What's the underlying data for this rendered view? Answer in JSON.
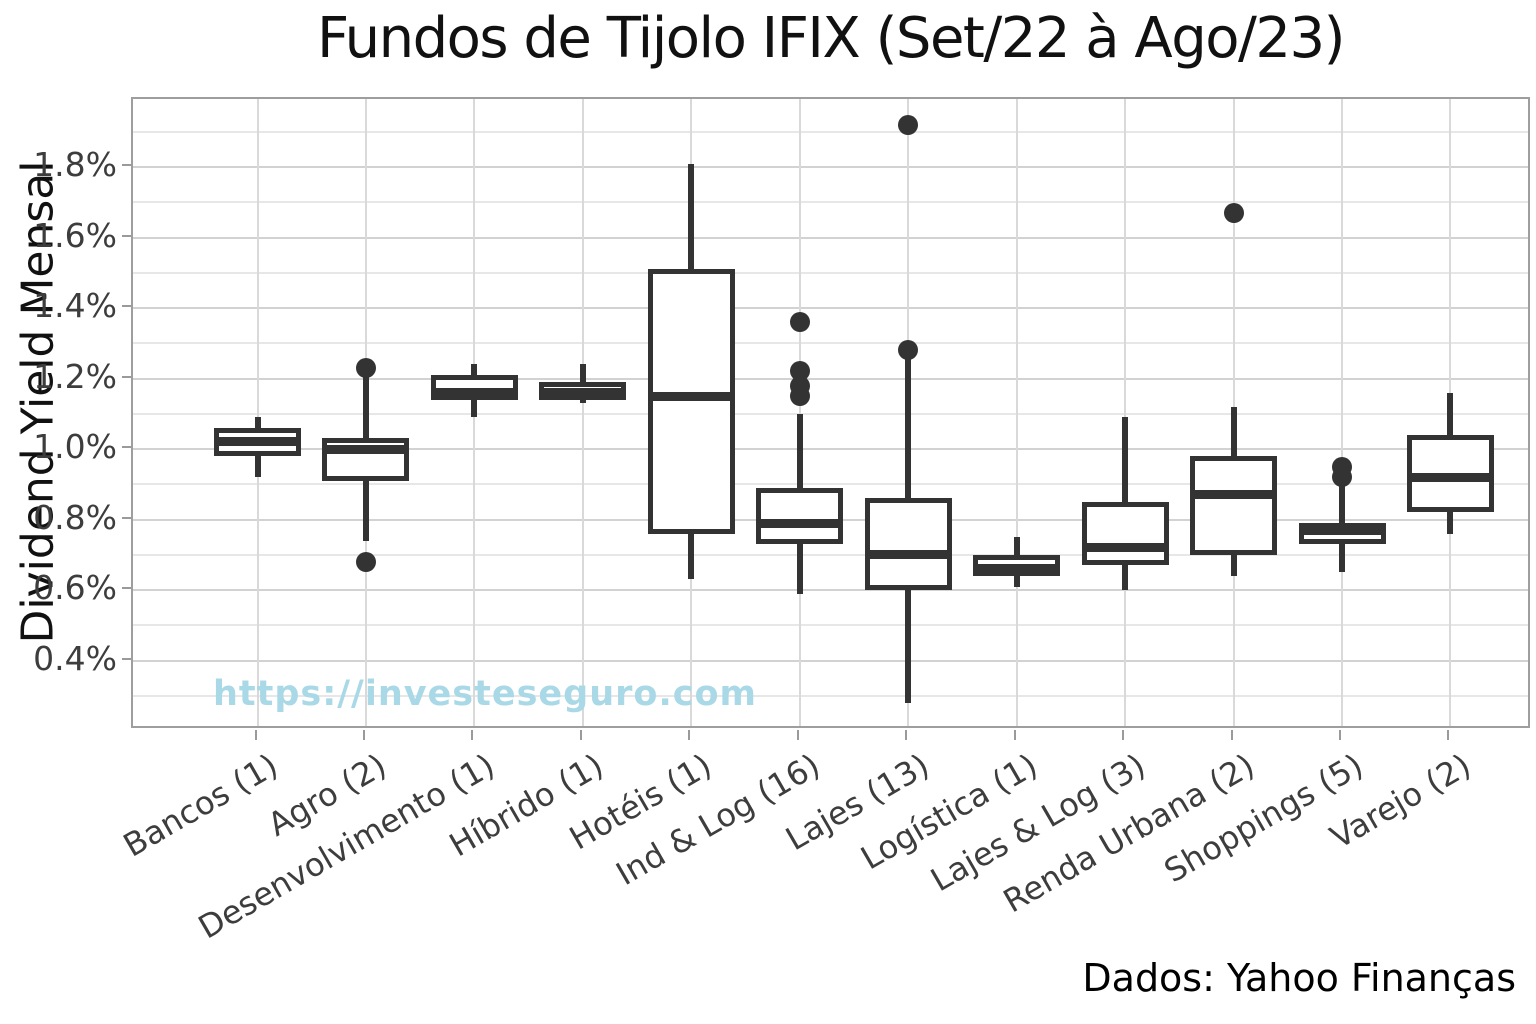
{
  "title": "Fundos de Tijolo IFIX (Set/22 à Ago/23)",
  "watermark": "https://investeseguro.com",
  "source_note": "Dados: Yahoo Finanças",
  "colors": {
    "box_line": "#333333",
    "grid_major": "#d2d2d2",
    "grid_minor": "#e7e7e7",
    "watermark": "#a9d8e6",
    "tick_label": "#3d3d3d"
  },
  "chart_data": {
    "type": "boxplot",
    "title": "Fundos de Tijolo IFIX (Set/22 à Ago/23)",
    "xlabel": "",
    "ylabel": "Dividend Yield Mensal",
    "ylim": [
      0.203,
      1.993
    ],
    "grid": "on",
    "y_ticks": [
      {
        "value": 1.8,
        "label": "1.8%"
      },
      {
        "value": 1.6,
        "label": "1.6%"
      },
      {
        "value": 1.4,
        "label": "1.4%"
      },
      {
        "value": 1.2,
        "label": "1.2%"
      },
      {
        "value": 1.0,
        "label": "1.0%"
      },
      {
        "value": 0.8,
        "label": "0.8%"
      },
      {
        "value": 0.6,
        "label": "0.6%"
      },
      {
        "value": 0.4,
        "label": "0.4%"
      }
    ],
    "y_minor_ticks": [
      1.9,
      1.7,
      1.5,
      1.3,
      1.1,
      0.9,
      0.7,
      0.5,
      0.3
    ],
    "categories": [
      "Bancos (1)",
      "Agro (2)",
      "Desenvolvimento (1)",
      "Híbrido (1)",
      "Hotéis (1)",
      "Ind & Log (16)",
      "Lajes (13)",
      "Logística (1)",
      "Lajes & Log (3)",
      "Renda Urbana (2)",
      "Shoppings (5)",
      "Varejo (2)"
    ],
    "boxes": [
      {
        "label": "Bancos (1)",
        "whislo": 0.92,
        "q1": 0.98,
        "med": 1.02,
        "q3": 1.06,
        "whishi": 1.09,
        "outliers": []
      },
      {
        "label": "Agro (2)",
        "whislo": 0.74,
        "q1": 0.91,
        "med": 1.0,
        "q3": 1.03,
        "whishi": 1.21,
        "outliers": [
          1.23,
          0.68
        ]
      },
      {
        "label": "Desenvolvimento (1)",
        "whislo": 1.09,
        "q1": 1.14,
        "med": 1.16,
        "q3": 1.21,
        "whishi": 1.24,
        "outliers": []
      },
      {
        "label": "Híbrido (1)",
        "whislo": 1.13,
        "q1": 1.14,
        "med": 1.16,
        "q3": 1.19,
        "whishi": 1.24,
        "outliers": []
      },
      {
        "label": "Hotéis (1)",
        "whislo": 0.63,
        "q1": 0.76,
        "med": 1.15,
        "q3": 1.51,
        "whishi": 1.81,
        "outliers": []
      },
      {
        "label": "Ind & Log (16)",
        "whislo": 0.59,
        "q1": 0.73,
        "med": 0.79,
        "q3": 0.89,
        "whishi": 1.1,
        "outliers": [
          1.36,
          1.22,
          1.18,
          1.15
        ]
      },
      {
        "label": "Lajes (13)",
        "whislo": 0.28,
        "q1": 0.6,
        "med": 0.7,
        "q3": 0.86,
        "whishi": 1.26,
        "outliers": [
          1.92,
          1.28
        ]
      },
      {
        "label": "Logística (1)",
        "whislo": 0.61,
        "q1": 0.64,
        "med": 0.66,
        "q3": 0.7,
        "whishi": 0.75,
        "outliers": []
      },
      {
        "label": "Lajes & Log (3)",
        "whislo": 0.6,
        "q1": 0.67,
        "med": 0.72,
        "q3": 0.85,
        "whishi": 1.09,
        "outliers": []
      },
      {
        "label": "Renda Urbana (2)",
        "whislo": 0.64,
        "q1": 0.7,
        "med": 0.87,
        "q3": 0.98,
        "whishi": 1.12,
        "outliers": [
          1.67
        ]
      },
      {
        "label": "Shoppings (5)",
        "whislo": 0.65,
        "q1": 0.73,
        "med": 0.77,
        "q3": 0.79,
        "whishi": 0.9,
        "outliers": [
          0.95,
          0.92
        ]
      },
      {
        "label": "Varejo (2)",
        "whislo": 0.76,
        "q1": 0.82,
        "med": 0.92,
        "q3": 1.04,
        "whishi": 1.16,
        "outliers": []
      }
    ]
  }
}
